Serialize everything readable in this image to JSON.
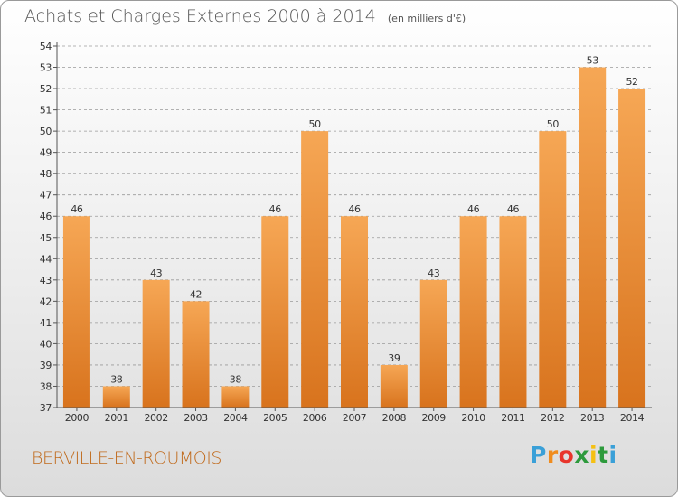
{
  "title": "Achats et Charges Externes 2000 à 2014",
  "subtitle": "(en milliers d'€)",
  "location": "BERVILLE-EN-ROUMOIS",
  "logo": {
    "text": "Proxiti",
    "letters": [
      "P",
      "r",
      "o",
      "x",
      "i",
      "t",
      "i"
    ],
    "letter_colors": [
      "#3aa0d8",
      "#f08c1e",
      "#e8352b",
      "#2d9a3c",
      "#f5c013",
      "#2d9a3c",
      "#3aa0d8"
    ]
  },
  "colors": {
    "bar_light": "#f6a755",
    "bar_dark": "#d8731d",
    "grid": "#9a9a9a",
    "axis": "#555555"
  },
  "chart_data": {
    "type": "bar",
    "categories": [
      "2000",
      "2001",
      "2002",
      "2003",
      "2004",
      "2005",
      "2006",
      "2007",
      "2008",
      "2009",
      "2010",
      "2011",
      "2012",
      "2013",
      "2014"
    ],
    "values": [
      46,
      38,
      43,
      42,
      38,
      46,
      50,
      46,
      39,
      43,
      46,
      46,
      50,
      53,
      52
    ],
    "data_labels": [
      "46",
      "38",
      "43",
      "42",
      "38",
      "46",
      "50",
      "46",
      "39",
      "43",
      "46",
      "46",
      "50",
      "53",
      "52"
    ],
    "ylim": [
      37,
      54
    ],
    "yticks": [
      37,
      38,
      39,
      40,
      41,
      42,
      43,
      44,
      45,
      46,
      47,
      48,
      49,
      50,
      51,
      52,
      53,
      54
    ],
    "grid": true,
    "grid_style": "dashed horizontal",
    "xlabel": "",
    "ylabel": "",
    "legend": "none"
  }
}
